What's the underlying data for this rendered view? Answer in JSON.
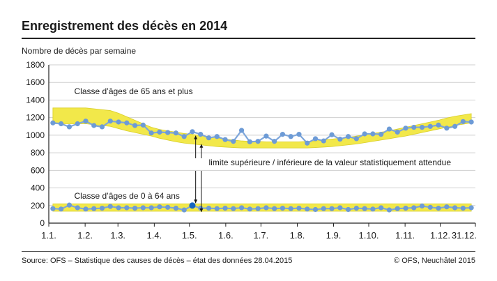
{
  "header": {
    "title": "Enregistrement des décès en 2014"
  },
  "footer": {
    "source": "Source: OFS – Statistique des causes de décès – état des données 28.04.2015",
    "copyright": "© OFS, Neuchâtel 2015"
  },
  "colors": {
    "band": "#f2e84a",
    "band_edge": "#d9cf2a",
    "line": "#7ea6da",
    "marker": "#6d9bd6",
    "highlight": "#1565c0",
    "grid": "#cfcfcf",
    "axis": "#222222"
  },
  "chart_data": {
    "type": "line",
    "title": "",
    "ylabel": "Nombre de décès par semaine",
    "ylim": [
      0,
      1800
    ],
    "yticks": [
      0,
      200,
      400,
      600,
      800,
      1000,
      1200,
      1400,
      1600,
      1800
    ],
    "xlim": [
      0,
      52
    ],
    "xticks": [
      {
        "label": "1.1.",
        "week": 0
      },
      {
        "label": "1.2.",
        "week": 4.43
      },
      {
        "label": "1.3.",
        "week": 8.43
      },
      {
        "label": "1.4.",
        "week": 12.86
      },
      {
        "label": "1.5.",
        "week": 17.14
      },
      {
        "label": "1.6.",
        "week": 21.57
      },
      {
        "label": "1.7.",
        "week": 25.86
      },
      {
        "label": "1.8.",
        "week": 30.29
      },
      {
        "label": "1.9.",
        "week": 34.71
      },
      {
        "label": "1.10.",
        "week": 39.0
      },
      {
        "label": "1.11.",
        "week": 43.43
      },
      {
        "label": "1.12.",
        "week": 47.71
      },
      {
        "label": "31.12.",
        "week": 52
      }
    ],
    "grid": "horizontal",
    "x": [
      0.5,
      1.5,
      2.5,
      3.5,
      4.5,
      5.5,
      6.5,
      7.5,
      8.5,
      9.5,
      10.5,
      11.5,
      12.5,
      13.5,
      14.5,
      15.5,
      16.5,
      17.5,
      18.5,
      19.5,
      20.5,
      21.5,
      22.5,
      23.5,
      24.5,
      25.5,
      26.5,
      27.5,
      28.5,
      29.5,
      30.5,
      31.5,
      32.5,
      33.5,
      34.5,
      35.5,
      36.5,
      37.5,
      38.5,
      39.5,
      40.5,
      41.5,
      42.5,
      43.5,
      44.5,
      45.5,
      46.5,
      47.5,
      48.5,
      49.5,
      50.5,
      51.5
    ],
    "series": [
      {
        "name": "Classe d’âges de 65 ans et plus",
        "values": [
          1140,
          1130,
          1095,
          1130,
          1160,
          1110,
          1095,
          1160,
          1150,
          1140,
          1110,
          1115,
          1025,
          1035,
          1030,
          1025,
          985,
          1040,
          1010,
          970,
          985,
          950,
          930,
          1055,
          925,
          930,
          990,
          930,
          1010,
          985,
          1010,
          910,
          960,
          935,
          1005,
          955,
          985,
          960,
          1015,
          1015,
          1010,
          1070,
          1035,
          1080,
          1090,
          1090,
          1100,
          1115,
          1080,
          1100,
          1155,
          1150
        ],
        "upper": [
          1310,
          1310,
          1310,
          1310,
          1310,
          1300,
          1290,
          1280,
          1250,
          1210,
          1170,
          1130,
          1090,
          1065,
          1050,
          1035,
          1020,
          1010,
          995,
          985,
          970,
          955,
          945,
          935,
          930,
          930,
          925,
          925,
          925,
          925,
          925,
          930,
          935,
          945,
          955,
          965,
          975,
          990,
          1005,
          1020,
          1035,
          1050,
          1070,
          1090,
          1110,
          1130,
          1150,
          1170,
          1195,
          1215,
          1230,
          1245
        ],
        "lower": [
          1130,
          1130,
          1130,
          1130,
          1130,
          1120,
          1110,
          1100,
          1075,
          1050,
          1030,
          1010,
          990,
          965,
          945,
          925,
          910,
          900,
          890,
          880,
          870,
          865,
          860,
          855,
          855,
          855,
          855,
          855,
          855,
          855,
          855,
          855,
          860,
          865,
          870,
          880,
          890,
          900,
          915,
          930,
          945,
          960,
          975,
          990,
          1010,
          1030,
          1050,
          1070,
          1090,
          1110,
          1125,
          1140
        ]
      },
      {
        "name": "Classe d’âges de 0 à 64 ans",
        "values": [
          165,
          160,
          205,
          175,
          160,
          165,
          170,
          190,
          175,
          175,
          170,
          175,
          175,
          185,
          180,
          170,
          150,
          200,
          170,
          170,
          165,
          170,
          165,
          175,
          160,
          165,
          175,
          165,
          170,
          165,
          170,
          160,
          155,
          165,
          165,
          175,
          155,
          170,
          165,
          160,
          175,
          150,
          165,
          170,
          175,
          195,
          180,
          170,
          185,
          175,
          170,
          175
        ],
        "upper": [
          220,
          220,
          220,
          220,
          220,
          220,
          220,
          220,
          220,
          220,
          220,
          220,
          220,
          220,
          220,
          220,
          220,
          220,
          220,
          220,
          220,
          220,
          220,
          220,
          220,
          220,
          220,
          220,
          220,
          220,
          220,
          220,
          220,
          220,
          220,
          220,
          220,
          220,
          220,
          220,
          220,
          220,
          220,
          220,
          220,
          220,
          220,
          220,
          220,
          220,
          220,
          220
        ],
        "lower": [
          135,
          135,
          135,
          135,
          135,
          135,
          135,
          135,
          135,
          135,
          135,
          135,
          135,
          135,
          135,
          135,
          135,
          135,
          135,
          135,
          135,
          135,
          135,
          135,
          135,
          135,
          135,
          135,
          135,
          135,
          135,
          135,
          135,
          135,
          135,
          135,
          135,
          135,
          135,
          135,
          135,
          135,
          135,
          135,
          135,
          135,
          135,
          135,
          135,
          135,
          135,
          135
        ]
      }
    ],
    "highlight_point": {
      "week": 17.5,
      "value": 200
    },
    "annotations": [
      {
        "text": "Classe d’âges de 65 ans et plus",
        "week": 3.1,
        "value": 1500
      },
      {
        "text": "Classe d’âges de 0 à 64 ans",
        "week": 3.1,
        "value": 310
      },
      {
        "text": "limite supérieure / inférieure de la valeur statistiquement attendue",
        "week": 19.5,
        "value": 690
      }
    ]
  }
}
